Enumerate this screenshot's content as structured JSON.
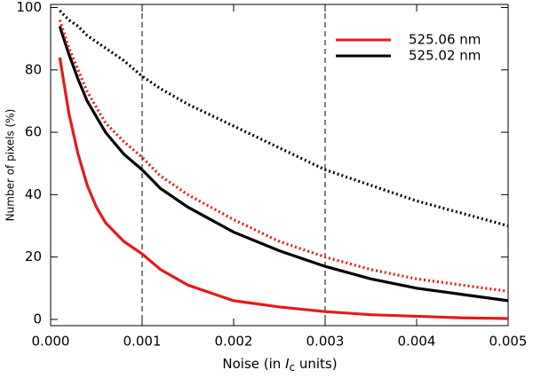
{
  "chart_data": {
    "type": "line",
    "xlabel_parts": [
      "Noise (in ",
      "I",
      "c",
      " units)"
    ],
    "ylabel": "Number of pixels (%)",
    "x": [
      0.0001,
      0.0002,
      0.0003,
      0.0004,
      0.0005,
      0.0006,
      0.0008,
      0.001,
      0.0012,
      0.0015,
      0.002,
      0.0025,
      0.003,
      0.0035,
      0.004,
      0.0045,
      0.005
    ],
    "series": [
      {
        "name": "525.06 nm",
        "color": "#e41a1c",
        "dash": "solid",
        "values": [
          84,
          66,
          53,
          43,
          36,
          31,
          25,
          21,
          16,
          11,
          6,
          4,
          2.5,
          1.5,
          1,
          0.5,
          0.3
        ]
      },
      {
        "name": "525.02 nm",
        "color": "#000000",
        "dash": "solid",
        "values": [
          94,
          85,
          77,
          70,
          65,
          60,
          53,
          48,
          42,
          36,
          28,
          22,
          17,
          13,
          10,
          8,
          6
        ]
      },
      {
        "color": "#e41a1c",
        "dash": "dotted",
        "values": [
          96,
          87,
          80,
          73,
          68,
          63,
          57,
          52,
          46,
          40,
          32,
          25,
          20,
          16,
          13,
          11,
          9
        ]
      },
      {
        "color": "#000000",
        "dash": "dotted",
        "values": [
          99,
          96,
          94,
          91,
          89,
          87,
          83,
          78,
          74,
          69,
          62,
          55,
          48,
          43,
          38,
          34,
          30
        ]
      }
    ],
    "vlines": [
      0.001,
      0.003
    ],
    "xlim": [
      0,
      0.005
    ],
    "ylim": [
      -2,
      101
    ],
    "xticks": [
      {
        "value": 0,
        "label": "0.000"
      },
      {
        "value": 0.001,
        "label": "0.001"
      },
      {
        "value": 0.002,
        "label": "0.002"
      },
      {
        "value": 0.003,
        "label": "0.003"
      },
      {
        "value": 0.004,
        "label": "0.004"
      },
      {
        "value": 0.005,
        "label": "0.005"
      }
    ],
    "yticks": [
      0,
      20,
      40,
      60,
      80,
      100
    ],
    "legend": "upper right"
  }
}
